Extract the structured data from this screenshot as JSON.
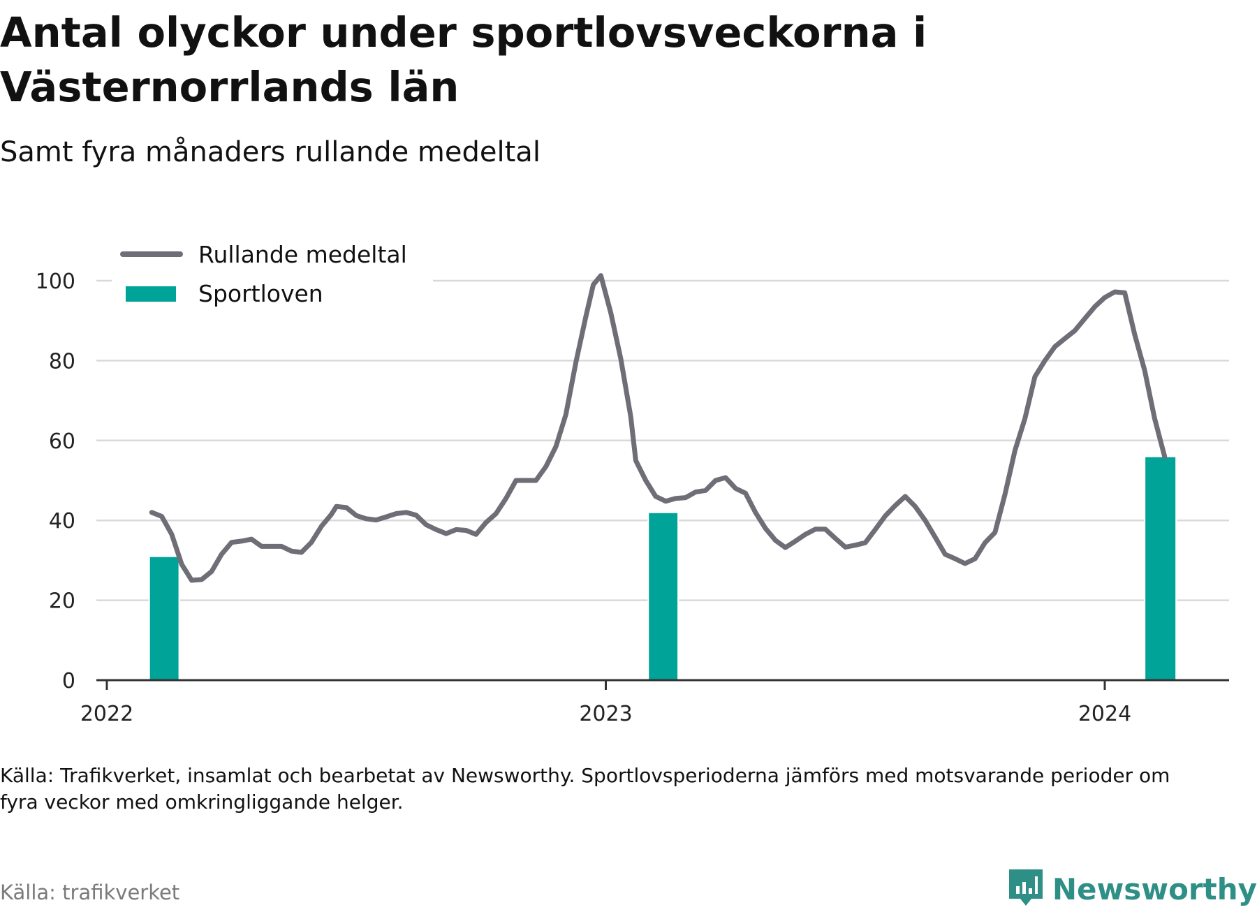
{
  "title": "Antal olyckor under sportlovsveckorna i Västernorrlands län",
  "subtitle": "Samt fyra månaders rullande medeltal",
  "note": "Källa: Trafikverket, insamlat och bearbetat av Newsworthy. Sportlovsperioderna jämförs med motsvarande perioder om fyra veckor med omkringliggande helger.",
  "source": "Källa: trafikverket",
  "brand": {
    "name": "Newsworthy",
    "icon": "newsworthy-logo-icon"
  },
  "colors": {
    "line": "#6f6e76",
    "bar": "#00a398",
    "grid": "#d9d9d9",
    "axis": "#333333",
    "brand": "#2e8f86"
  },
  "chart_data": {
    "type": "bar+line",
    "ylim": [
      0,
      100
    ],
    "yticks": [
      "0",
      "20",
      "40",
      "60",
      "80",
      "100"
    ],
    "xticks": [
      {
        "label": "2022",
        "x": 2022.0
      },
      {
        "label": "2023",
        "x": 2023.0
      },
      {
        "label": "2024",
        "x": 2024.0
      }
    ],
    "xlim": [
      2021.98,
      2024.25
    ],
    "grid": true,
    "legend_position": "top-left",
    "legend": {
      "line": "Rullande medeltal",
      "bars": "Sportloven"
    },
    "bars": [
      {
        "x_start": 2022.085,
        "x_end": 2022.145,
        "value": 31
      },
      {
        "x_start": 2023.085,
        "x_end": 2023.145,
        "value": 42
      },
      {
        "x_start": 2024.08,
        "x_end": 2024.143,
        "value": 56
      }
    ],
    "line": [
      [
        2022.09,
        42
      ],
      [
        2022.11,
        41
      ],
      [
        2022.13,
        36.5
      ],
      [
        2022.15,
        29
      ],
      [
        2022.17,
        25
      ],
      [
        2022.19,
        25.2
      ],
      [
        2022.21,
        27.2
      ],
      [
        2022.23,
        31.5
      ],
      [
        2022.25,
        34.5
      ],
      [
        2022.27,
        34.8
      ],
      [
        2022.29,
        35.3
      ],
      [
        2022.31,
        33.5
      ],
      [
        2022.33,
        33.5
      ],
      [
        2022.35,
        33.5
      ],
      [
        2022.37,
        32.3
      ],
      [
        2022.39,
        32
      ],
      [
        2022.41,
        34.5
      ],
      [
        2022.43,
        38.5
      ],
      [
        2022.45,
        41.5
      ],
      [
        2022.46,
        43.5
      ],
      [
        2022.48,
        43.2
      ],
      [
        2022.5,
        41.2
      ],
      [
        2022.52,
        40.4
      ],
      [
        2022.54,
        40.1
      ],
      [
        2022.56,
        40.9
      ],
      [
        2022.58,
        41.7
      ],
      [
        2022.6,
        42
      ],
      [
        2022.62,
        41.3
      ],
      [
        2022.64,
        38.9
      ],
      [
        2022.66,
        37.7
      ],
      [
        2022.68,
        36.7
      ],
      [
        2022.7,
        37.7
      ],
      [
        2022.72,
        37.5
      ],
      [
        2022.74,
        36.5
      ],
      [
        2022.76,
        39.5
      ],
      [
        2022.78,
        41.7
      ],
      [
        2022.8,
        45.5
      ],
      [
        2022.82,
        50
      ],
      [
        2022.84,
        50
      ],
      [
        2022.86,
        50
      ],
      [
        2022.88,
        53.5
      ],
      [
        2022.9,
        58.5
      ],
      [
        2022.92,
        66.5
      ],
      [
        2022.94,
        79.5
      ],
      [
        2022.96,
        91
      ],
      [
        2022.975,
        99
      ],
      [
        2022.99,
        101.3
      ],
      [
        2023.01,
        92
      ],
      [
        2023.03,
        80.5
      ],
      [
        2023.05,
        66
      ],
      [
        2023.06,
        55
      ],
      [
        2023.08,
        50
      ],
      [
        2023.1,
        46
      ],
      [
        2023.12,
        44.8
      ],
      [
        2023.14,
        45.5
      ],
      [
        2023.16,
        45.7
      ],
      [
        2023.18,
        47.1
      ],
      [
        2023.2,
        47.5
      ],
      [
        2023.22,
        50
      ],
      [
        2023.24,
        50.7
      ],
      [
        2023.26,
        48
      ],
      [
        2023.28,
        46.8
      ],
      [
        2023.3,
        42
      ],
      [
        2023.32,
        38
      ],
      [
        2023.34,
        35
      ],
      [
        2023.36,
        33.2
      ],
      [
        2023.38,
        34.8
      ],
      [
        2023.4,
        36.5
      ],
      [
        2023.42,
        37.8
      ],
      [
        2023.44,
        37.8
      ],
      [
        2023.46,
        35.5
      ],
      [
        2023.48,
        33.3
      ],
      [
        2023.5,
        33.8
      ],
      [
        2023.52,
        34.4
      ],
      [
        2023.54,
        37.7
      ],
      [
        2023.56,
        41.1
      ],
      [
        2023.58,
        43.7
      ],
      [
        2023.6,
        46
      ],
      [
        2023.62,
        43.5
      ],
      [
        2023.64,
        40
      ],
      [
        2023.66,
        35.8
      ],
      [
        2023.68,
        31.5
      ],
      [
        2023.7,
        30.4
      ],
      [
        2023.72,
        29.2
      ],
      [
        2023.74,
        30.4
      ],
      [
        2023.76,
        34.4
      ],
      [
        2023.78,
        37
      ],
      [
        2023.8,
        46.5
      ],
      [
        2023.82,
        57.5
      ],
      [
        2023.84,
        65.5
      ],
      [
        2023.86,
        76
      ],
      [
        2023.88,
        80
      ],
      [
        2023.9,
        83.5
      ],
      [
        2023.92,
        85.5
      ],
      [
        2023.94,
        87.5
      ],
      [
        2023.96,
        90.5
      ],
      [
        2023.98,
        93.5
      ],
      [
        2024.0,
        95.8
      ],
      [
        2024.02,
        97.2
      ],
      [
        2024.04,
        97
      ],
      [
        2024.06,
        86.5
      ],
      [
        2024.08,
        77.5
      ],
      [
        2024.1,
        65.5
      ],
      [
        2024.12,
        56
      ]
    ]
  }
}
